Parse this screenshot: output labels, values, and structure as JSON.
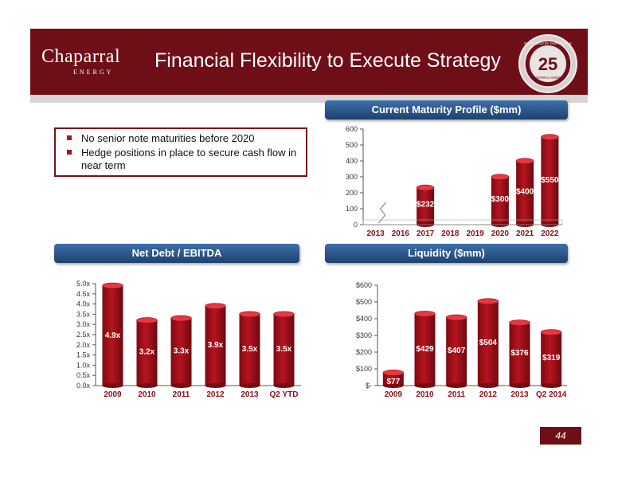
{
  "header": {
    "logo_text": "Chaparral",
    "logo_subtext": "ENERGY",
    "title": "Financial Flexibility to Execute Strategy",
    "seal_number": "25",
    "seal_text": "ENERGIZED BY OUR PEOPLE",
    "seal_brand": "CHAPARRAL ENERGY"
  },
  "bullets": [
    "No senior note maturities before 2020",
    "Hedge positions in place to secure cash flow in near term"
  ],
  "panels": {
    "maturity_title": "Current Maturity Profile ($mm)",
    "leverage_title": "Net Debt / EBITDA",
    "liquidity_title": "Liquidity ($mm)"
  },
  "page_number": "44",
  "colors": {
    "header": "#6e0f17",
    "bar": "#b5141f",
    "bar_top": "#e8383f",
    "panel_title": "#2b5688"
  },
  "chart_data": [
    {
      "id": "maturity",
      "type": "bar",
      "title": "Current Maturity Profile ($mm)",
      "categories": [
        "2013",
        "2016",
        "2017",
        "2018",
        "2019",
        "2020",
        "2021",
        "2022"
      ],
      "values": [
        0,
        0,
        232,
        0,
        0,
        300,
        400,
        550
      ],
      "data_labels": [
        "",
        "",
        "$232",
        "",
        "",
        "$300",
        "$400",
        "$550"
      ],
      "y_ticks": [
        "0",
        "100",
        "200",
        "300",
        "400",
        "500",
        "600"
      ],
      "ylim": [
        0,
        600
      ],
      "axis_break_after": "2013",
      "grid": false
    },
    {
      "id": "leverage",
      "type": "bar",
      "title": "Net Debt / EBITDA",
      "categories": [
        "2009",
        "2010",
        "2011",
        "2012",
        "2013",
        "Q2 YTD"
      ],
      "values": [
        4.9,
        3.2,
        3.3,
        3.9,
        3.5,
        3.5
      ],
      "data_labels": [
        "4.9x",
        "3.2x",
        "3.3x",
        "3.9x",
        "3.5x",
        "3.5x"
      ],
      "y_ticks": [
        "0.0x",
        "0.5x",
        "1.0x",
        "1.5x",
        "2.0x",
        "2.5x",
        "3.0x",
        "3.5x",
        "4.0x",
        "4.5x",
        "5.0x"
      ],
      "ylim": [
        0,
        5
      ],
      "grid": false
    },
    {
      "id": "liquidity",
      "type": "bar",
      "title": "Liquidity ($mm)",
      "categories": [
        "2009",
        "2010",
        "2011",
        "2012",
        "2013",
        "Q2 2014"
      ],
      "values": [
        77,
        429,
        407,
        504,
        376,
        319
      ],
      "data_labels": [
        "$77",
        "$429",
        "$407",
        "$504",
        "$376",
        "$319"
      ],
      "y_ticks": [
        "$-",
        "$100",
        "$200",
        "$300",
        "$400",
        "$500",
        "$600"
      ],
      "ylim": [
        0,
        600
      ],
      "grid": false
    }
  ]
}
